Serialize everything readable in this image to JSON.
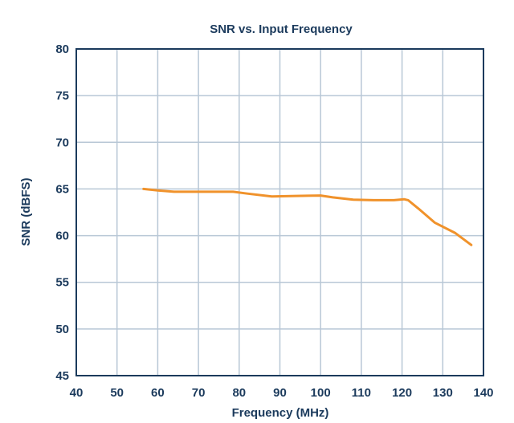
{
  "chart_data": {
    "type": "line",
    "title": "SNR vs. Input Frequency",
    "xlabel": "Frequency (MHz)",
    "ylabel": "SNR (dBFS)",
    "xlim": [
      40,
      140
    ],
    "ylim": [
      45,
      80
    ],
    "x_ticks": [
      "40",
      "50",
      "60",
      "70",
      "80",
      "90",
      "100",
      "110",
      "120",
      "130",
      "140"
    ],
    "y_ticks": [
      "45",
      "50",
      "55",
      "60",
      "65",
      "70",
      "75",
      "80"
    ],
    "grid": true,
    "legend": "none",
    "series": [
      {
        "color": "#f0922b",
        "x": [
          56.5,
          60,
          64,
          70,
          78.5,
          82,
          88,
          94,
          100,
          103,
          108,
          113,
          118,
          120.5,
          121.5,
          124,
          128,
          133,
          137
        ],
        "y": [
          65.0,
          64.85,
          64.7,
          64.7,
          64.7,
          64.5,
          64.2,
          64.25,
          64.3,
          64.1,
          63.85,
          63.8,
          63.8,
          63.9,
          63.8,
          62.9,
          61.4,
          60.3,
          59.0
        ]
      }
    ]
  },
  "colors": {
    "text": "#1b3a5c",
    "grid": "#b8c7d6",
    "frame": "#1b3a5c",
    "series": "#f0922b"
  }
}
